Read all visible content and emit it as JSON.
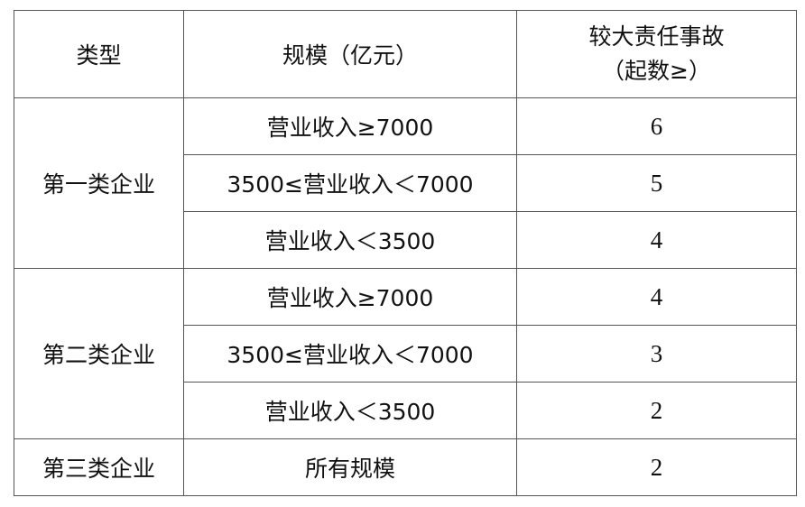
{
  "headers": {
    "type": "类型",
    "scale": "规模（亿元）",
    "accidents_line1": "较大责任事故",
    "accidents_line2": "（起数≥）"
  },
  "groups": [
    {
      "type": "第一类企业",
      "rows": [
        {
          "scale": "营业收入≥7000",
          "count": "6"
        },
        {
          "scale": "3500≤营业收入＜7000",
          "count": "5"
        },
        {
          "scale": "营业收入＜3500",
          "count": "4"
        }
      ]
    },
    {
      "type": "第二类企业",
      "rows": [
        {
          "scale": "营业收入≥7000",
          "count": "4"
        },
        {
          "scale": "3500≤营业收入＜7000",
          "count": "3"
        },
        {
          "scale": "营业收入＜3500",
          "count": "2"
        }
      ]
    },
    {
      "type": "第三类企业",
      "rows": [
        {
          "scale": "所有规模",
          "count": "2"
        }
      ]
    }
  ]
}
